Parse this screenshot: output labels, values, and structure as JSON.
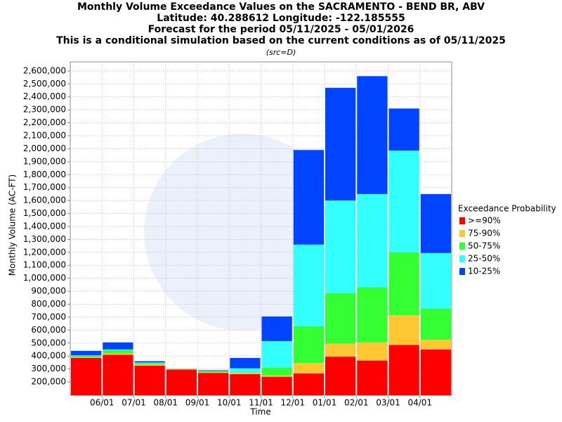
{
  "chart_data": {
    "type": "stacked_bar",
    "title": [
      "Monthly Volume Exceedance Values on the SACRAMENTO - BEND BR, ABV",
      "Latitude: 40.288612 Longitude: -122.185555",
      "Forecast for the period 05/11/2025 - 05/01/2026",
      "This is a conditional simulation based on the current conditions as of 05/11/2025"
    ],
    "subtitle": "(src=D)",
    "x_label": "Time",
    "y_label": "Monthly Volume (AC-FT)",
    "legend_title": "Exceedance Probability",
    "categories": [
      null,
      "06/01",
      "07/01",
      "08/01",
      "09/01",
      "10/01",
      "11/01",
      "12/01",
      "01/01",
      "02/01",
      "03/01",
      "04/01"
    ],
    "series": [
      {
        "name": ">=90%",
        "color": "#ff0000",
        "values": [
          385000,
          410000,
          325000,
          295000,
          270000,
          260000,
          240000,
          265000,
          395000,
          365000,
          485000,
          450000
        ]
      },
      {
        "name": "75-90%",
        "color": "#ffc832",
        "values": [
          5000,
          10000,
          10000,
          5000,
          5000,
          10000,
          10000,
          80000,
          100000,
          140000,
          230000,
          75000
        ]
      },
      {
        "name": "50-75%",
        "color": "#33ff33",
        "values": [
          10000,
          25000,
          10000,
          0,
          10000,
          5000,
          60000,
          285000,
          390000,
          425000,
          485000,
          240000
        ]
      },
      {
        "name": "25-50%",
        "color": "#33ffff",
        "values": [
          5000,
          5000,
          5000,
          5000,
          0,
          30000,
          205000,
          630000,
          715000,
          720000,
          785000,
          430000
        ]
      },
      {
        "name": "10-25%",
        "color": "#0044ff",
        "values": [
          35000,
          55000,
          10000,
          0,
          5000,
          80000,
          190000,
          730000,
          870000,
          910000,
          325000,
          455000
        ]
      }
    ],
    "ylim": [
      97000,
      2670000
    ],
    "yticks": [
      {
        "value": 200000,
        "label": "200,000"
      },
      {
        "value": 300000,
        "label": "300,000"
      },
      {
        "value": 400000,
        "label": "400,000"
      },
      {
        "value": 500000,
        "label": "500,000"
      },
      {
        "value": 600000,
        "label": "600,000"
      },
      {
        "value": 700000,
        "label": "700,000"
      },
      {
        "value": 800000,
        "label": "800,000"
      },
      {
        "value": 900000,
        "label": "900,000"
      },
      {
        "value": 1000000,
        "label": "1,000,000"
      },
      {
        "value": 1100000,
        "label": "1,100,000"
      },
      {
        "value": 1200000,
        "label": "1,200,000"
      },
      {
        "value": 1300000,
        "label": "1,300,000"
      },
      {
        "value": 1400000,
        "label": "1,400,000"
      },
      {
        "value": 1500000,
        "label": "1,500,000"
      },
      {
        "value": 1600000,
        "label": "1,600,000"
      },
      {
        "value": 1700000,
        "label": "1,700,000"
      },
      {
        "value": 1800000,
        "label": "1,800,000"
      },
      {
        "value": 1900000,
        "label": "1,900,000"
      },
      {
        "value": 2000000,
        "label": "2,000,000"
      },
      {
        "value": 2100000,
        "label": "2,100,000"
      },
      {
        "value": 2200000,
        "label": "2,200,000"
      },
      {
        "value": 2300000,
        "label": "2,300,000"
      },
      {
        "value": 2400000,
        "label": "2,400,000"
      },
      {
        "value": 2500000,
        "label": "2,500,000"
      },
      {
        "value": 2600000,
        "label": "2,600,000"
      }
    ],
    "grid": true
  }
}
